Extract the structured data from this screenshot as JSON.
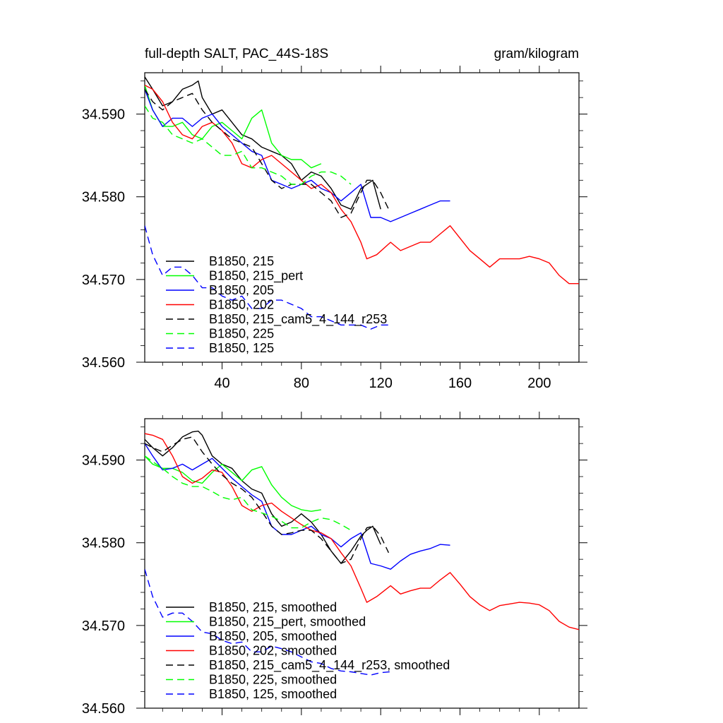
{
  "figure": {
    "title_left": "full-depth SALT, PAC_44S-18S",
    "title_right": "gram/kilogram"
  },
  "chart_data": [
    {
      "type": "line",
      "title": "full-depth SALT, PAC_44S-18S",
      "units": "gram/kilogram",
      "xlim": [
        1,
        220
      ],
      "ylim": [
        34.56,
        34.595
      ],
      "xticks": [
        40,
        80,
        120,
        160,
        200
      ],
      "xtick_labels": [
        "40",
        "80",
        "120",
        "160",
        "200"
      ],
      "yticks": [
        34.56,
        34.57,
        34.58,
        34.59
      ],
      "ytick_labels": [
        "34.560",
        "34.570",
        "34.580",
        "34.590"
      ],
      "grid": false,
      "legend_position": "lower-left",
      "series": [
        {
          "name": "B1850, 215",
          "color": "#000000",
          "dash": "solid",
          "x": [
            1,
            5,
            10,
            15,
            20,
            25,
            28,
            30,
            35,
            40,
            45,
            50,
            55,
            60,
            65,
            70,
            75,
            80,
            85,
            90,
            95,
            100,
            105,
            110,
            113,
            116,
            120
          ],
          "y": [
            34.5945,
            34.593,
            34.591,
            34.5915,
            34.593,
            34.5935,
            34.594,
            34.592,
            34.59,
            34.5905,
            34.589,
            34.5875,
            34.587,
            34.586,
            34.5855,
            34.585,
            34.584,
            34.582,
            34.583,
            34.5825,
            34.581,
            34.579,
            34.5785,
            34.581,
            34.5815,
            34.582,
            34.5785
          ]
        },
        {
          "name": "B1850, 215_pert",
          "color": "#00ff00",
          "dash": "solid",
          "x": [
            1,
            5,
            10,
            15,
            20,
            25,
            30,
            35,
            40,
            45,
            50,
            55,
            60,
            65,
            70,
            75,
            80,
            85,
            90
          ],
          "y": [
            34.5935,
            34.5905,
            34.5885,
            34.5885,
            34.589,
            34.5875,
            34.587,
            34.5885,
            34.589,
            34.588,
            34.587,
            34.5895,
            34.5905,
            34.5865,
            34.585,
            34.5845,
            34.5845,
            34.5835,
            34.584
          ]
        },
        {
          "name": "B1850, 205",
          "color": "#0000ff",
          "dash": "solid",
          "x": [
            1,
            5,
            10,
            15,
            20,
            25,
            30,
            35,
            40,
            45,
            50,
            55,
            60,
            65,
            70,
            75,
            80,
            85,
            90,
            95,
            100,
            105,
            110,
            115,
            120,
            125,
            130,
            135,
            140,
            145,
            150,
            155
          ],
          "y": [
            34.593,
            34.5905,
            34.5885,
            34.5895,
            34.5895,
            34.5885,
            34.5895,
            34.59,
            34.5885,
            34.5875,
            34.5865,
            34.5855,
            34.585,
            34.582,
            34.5815,
            34.581,
            34.5815,
            34.582,
            34.581,
            34.5805,
            34.5795,
            34.5805,
            34.5815,
            34.5775,
            34.5775,
            34.577,
            34.5775,
            34.578,
            34.5785,
            34.579,
            34.5795,
            34.5795
          ]
        },
        {
          "name": "B1850, 202",
          "color": "#ff0000",
          "dash": "solid",
          "x": [
            1,
            5,
            10,
            15,
            20,
            25,
            30,
            35,
            40,
            45,
            50,
            55,
            60,
            65,
            70,
            75,
            80,
            85,
            90,
            95,
            100,
            105,
            110,
            113,
            118,
            125,
            130,
            135,
            140,
            145,
            150,
            155,
            160,
            165,
            170,
            175,
            180,
            185,
            190,
            195,
            200,
            205,
            210,
            215,
            220
          ],
          "y": [
            34.5935,
            34.593,
            34.5915,
            34.589,
            34.5875,
            34.587,
            34.5885,
            34.589,
            34.588,
            34.5865,
            34.584,
            34.5835,
            34.5845,
            34.585,
            34.584,
            34.583,
            34.582,
            34.581,
            34.5815,
            34.5805,
            34.5785,
            34.577,
            34.5745,
            34.5725,
            34.573,
            34.5745,
            34.5735,
            34.574,
            34.5745,
            34.5745,
            34.5755,
            34.5765,
            34.575,
            34.5735,
            34.5725,
            34.5715,
            34.5725,
            34.5725,
            34.5725,
            34.5728,
            34.5725,
            34.572,
            34.5705,
            34.5695,
            34.5695
          ]
        },
        {
          "name": "B1850, 215_cam5_4_144_r253",
          "color": "#000000",
          "dash": "dashed",
          "x": [
            1,
            5,
            10,
            15,
            20,
            25,
            30,
            35,
            40,
            45,
            50,
            55,
            60,
            65,
            70,
            75,
            80,
            85,
            90,
            95,
            100,
            105,
            110,
            113,
            116,
            120,
            124
          ],
          "y": [
            34.593,
            34.5915,
            34.5905,
            34.5915,
            34.592,
            34.5925,
            34.5905,
            34.589,
            34.588,
            34.587,
            34.5865,
            34.586,
            34.584,
            34.582,
            34.581,
            34.5815,
            34.5815,
            34.5815,
            34.5805,
            34.5795,
            34.5775,
            34.578,
            34.5805,
            34.582,
            34.582,
            34.5805,
            34.5785
          ]
        },
        {
          "name": "B1850, 225",
          "color": "#00ff00",
          "dash": "dashed",
          "x": [
            1,
            5,
            10,
            15,
            20,
            25,
            30,
            35,
            40,
            45,
            50,
            55,
            60,
            65,
            70,
            75,
            80,
            85,
            90,
            95,
            100,
            105
          ],
          "y": [
            34.591,
            34.5895,
            34.589,
            34.5875,
            34.587,
            34.5865,
            34.587,
            34.586,
            34.585,
            34.585,
            34.5855,
            34.5835,
            34.5835,
            34.583,
            34.5825,
            34.5815,
            34.5815,
            34.5825,
            34.583,
            34.583,
            34.5825,
            34.5815
          ]
        },
        {
          "name": "B1850, 125",
          "color": "#0000ff",
          "dash": "dashed",
          "x": [
            1,
            5,
            10,
            15,
            20,
            25,
            30,
            35,
            40,
            45,
            50,
            55,
            60,
            65,
            70,
            75,
            80,
            85,
            90,
            95,
            100,
            105,
            110,
            115,
            120,
            125
          ],
          "y": [
            34.5765,
            34.573,
            34.5705,
            34.5715,
            34.5715,
            34.5705,
            34.569,
            34.569,
            34.568,
            34.5675,
            34.568,
            34.5665,
            34.5665,
            34.5675,
            34.5675,
            34.567,
            34.5665,
            34.5655,
            34.5655,
            34.565,
            34.5645,
            34.5645,
            34.5645,
            34.564,
            34.5645,
            34.5645
          ]
        }
      ]
    },
    {
      "type": "line",
      "title": "",
      "xlim": [
        1,
        220
      ],
      "ylim": [
        34.56,
        34.595
      ],
      "xticks": [
        40,
        80,
        120,
        160,
        200
      ],
      "xtick_labels": [],
      "yticks": [
        34.56,
        34.57,
        34.58,
        34.59
      ],
      "ytick_labels": [
        "34.560",
        "34.570",
        "34.580",
        "34.590"
      ],
      "grid": false,
      "legend_position": "lower-left",
      "series": [
        {
          "name": "B1850, 215, smoothed",
          "color": "#000000",
          "dash": "solid",
          "x": [
            1,
            5,
            10,
            15,
            20,
            25,
            28,
            30,
            35,
            40,
            45,
            50,
            55,
            60,
            65,
            70,
            75,
            80,
            85,
            90,
            95,
            100,
            105,
            110,
            113,
            116,
            120
          ],
          "y": [
            34.5925,
            34.5915,
            34.5905,
            34.5915,
            34.5928,
            34.5934,
            34.5935,
            34.593,
            34.5905,
            34.5895,
            34.589,
            34.5875,
            34.5865,
            34.586,
            34.5835,
            34.582,
            34.5825,
            34.5835,
            34.5825,
            34.581,
            34.579,
            34.5775,
            34.579,
            34.5808,
            34.5815,
            34.582,
            34.5798
          ]
        },
        {
          "name": "B1850, 215_pert, smoothed",
          "color": "#00ff00",
          "dash": "solid",
          "x": [
            1,
            5,
            10,
            15,
            20,
            25,
            30,
            35,
            40,
            45,
            50,
            55,
            60,
            65,
            70,
            75,
            80,
            85,
            90
          ],
          "y": [
            34.5905,
            34.5895,
            34.589,
            34.589,
            34.5885,
            34.5875,
            34.5872,
            34.5885,
            34.5895,
            34.5885,
            34.5875,
            34.5888,
            34.5892,
            34.587,
            34.5855,
            34.5845,
            34.584,
            34.5838,
            34.584
          ]
        },
        {
          "name": "B1850, 205, smoothed",
          "color": "#0000ff",
          "dash": "solid",
          "x": [
            1,
            5,
            10,
            15,
            20,
            25,
            30,
            35,
            40,
            45,
            50,
            55,
            60,
            65,
            70,
            75,
            80,
            85,
            90,
            95,
            100,
            105,
            110,
            115,
            120,
            125,
            130,
            135,
            140,
            145,
            150,
            155
          ],
          "y": [
            34.592,
            34.5905,
            34.5888,
            34.589,
            34.5895,
            34.5888,
            34.5895,
            34.5902,
            34.589,
            34.5878,
            34.5868,
            34.5858,
            34.585,
            34.582,
            34.581,
            34.581,
            34.5815,
            34.582,
            34.581,
            34.5805,
            34.5795,
            34.5805,
            34.5812,
            34.5775,
            34.5772,
            34.5768,
            34.5778,
            34.5786,
            34.579,
            34.5793,
            34.5798,
            34.5797
          ]
        },
        {
          "name": "B1850, 202, smoothed",
          "color": "#ff0000",
          "dash": "solid",
          "x": [
            1,
            5,
            10,
            15,
            20,
            25,
            30,
            35,
            40,
            45,
            50,
            55,
            60,
            65,
            70,
            75,
            80,
            85,
            90,
            95,
            100,
            105,
            110,
            113,
            118,
            125,
            130,
            135,
            140,
            145,
            150,
            155,
            160,
            165,
            170,
            175,
            180,
            185,
            190,
            195,
            200,
            205,
            210,
            215,
            220
          ],
          "y": [
            34.5932,
            34.593,
            34.5925,
            34.5905,
            34.588,
            34.5872,
            34.5878,
            34.5888,
            34.5885,
            34.5868,
            34.5845,
            34.5838,
            34.5845,
            34.5848,
            34.5838,
            34.583,
            34.5822,
            34.5815,
            34.5812,
            34.5805,
            34.5788,
            34.5772,
            34.5745,
            34.5728,
            34.5735,
            34.5748,
            34.5738,
            34.5742,
            34.5745,
            34.5745,
            34.5755,
            34.5764,
            34.575,
            34.5735,
            34.5725,
            34.5718,
            34.5724,
            34.5726,
            34.5728,
            34.5727,
            34.5725,
            34.5718,
            34.5705,
            34.5698,
            34.5695
          ]
        },
        {
          "name": "B1850, 215_cam5_4_144_r253, smoothed",
          "color": "#000000",
          "dash": "dashed",
          "x": [
            1,
            5,
            10,
            15,
            20,
            25,
            30,
            35,
            40,
            45,
            50,
            55,
            60,
            65,
            70,
            75,
            80,
            85,
            90,
            95,
            100,
            105,
            110,
            113,
            116,
            120,
            124
          ],
          "y": [
            34.592,
            34.5915,
            34.591,
            34.5918,
            34.5925,
            34.5928,
            34.591,
            34.5895,
            34.5882,
            34.5872,
            34.5865,
            34.5855,
            34.5838,
            34.582,
            34.581,
            34.5812,
            34.5815,
            34.5815,
            34.5805,
            34.579,
            34.5775,
            34.578,
            34.5805,
            34.5818,
            34.582,
            34.5808,
            34.5788
          ]
        },
        {
          "name": "B1850, 225, smoothed",
          "color": "#00ff00",
          "dash": "dashed",
          "x": [
            1,
            5,
            10,
            15,
            20,
            25,
            30,
            35,
            40,
            45,
            50,
            55,
            60,
            65,
            70,
            75,
            80,
            85,
            90,
            95,
            100,
            105
          ],
          "y": [
            34.5905,
            34.5898,
            34.589,
            34.588,
            34.5872,
            34.5868,
            34.5868,
            34.5862,
            34.5855,
            34.5852,
            34.5855,
            34.584,
            34.5836,
            34.5832,
            34.5826,
            34.5818,
            34.5818,
            34.5825,
            34.583,
            34.5828,
            34.5822,
            34.5815
          ]
        },
        {
          "name": "B1850, 125, smoothed",
          "color": "#0000ff",
          "dash": "dashed",
          "x": [
            1,
            5,
            10,
            15,
            20,
            25,
            30,
            35,
            40,
            45,
            50,
            55,
            60,
            65,
            70,
            75,
            80,
            85,
            90,
            95,
            100,
            105,
            110,
            115,
            120,
            125
          ],
          "y": [
            34.5768,
            34.5735,
            34.571,
            34.5715,
            34.5715,
            34.5705,
            34.5692,
            34.569,
            34.5682,
            34.5678,
            34.568,
            34.5668,
            34.5668,
            34.5675,
            34.5672,
            34.5668,
            34.5662,
            34.5656,
            34.5654,
            34.5648,
            34.5645,
            34.5644,
            34.5642,
            34.564,
            34.5643,
            34.5644
          ]
        }
      ]
    }
  ]
}
